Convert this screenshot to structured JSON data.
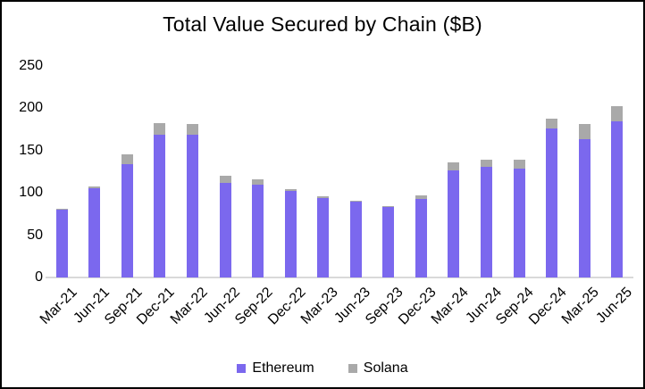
{
  "window": {
    "title": "Total Value Secured by Chain ($B)"
  },
  "chart_data": {
    "type": "bar",
    "stacked": true,
    "title": "Total Value Secured by Chain ($B)",
    "xlabel": "",
    "ylabel": "",
    "categories": [
      "Mar-21",
      "Jun-21",
      "Sep-21",
      "Dec-21",
      "Mar-22",
      "Jun-22",
      "Sep-22",
      "Dec-22",
      "Mar-23",
      "Jun-23",
      "Sep-23",
      "Dec-23",
      "Mar-24",
      "Jun-24",
      "Sep-24",
      "Dec-24",
      "Mar-25",
      "Jun-25"
    ],
    "series": [
      {
        "name": "Ethereum",
        "color": "#7B68EE",
        "values": [
          80,
          106,
          134,
          169,
          169,
          112,
          110,
          102,
          94,
          90,
          83,
          93,
          127,
          131,
          129,
          176,
          163,
          185
        ]
      },
      {
        "name": "Solana",
        "color": "#A9A9A9",
        "values": [
          1,
          2,
          12,
          13,
          12,
          8,
          6,
          2,
          2,
          1,
          1.5,
          4,
          9,
          8,
          10,
          12,
          18,
          18
        ]
      }
    ],
    "ylim": [
      0,
      250
    ],
    "yticks": [
      0,
      50,
      100,
      150,
      200,
      250
    ],
    "grid": false,
    "legend_position": "bottom",
    "colors": {
      "background": "#FFFFFF",
      "frame_border": "#000000",
      "axis_line": "#D9D9D9",
      "text": "#000000"
    }
  }
}
